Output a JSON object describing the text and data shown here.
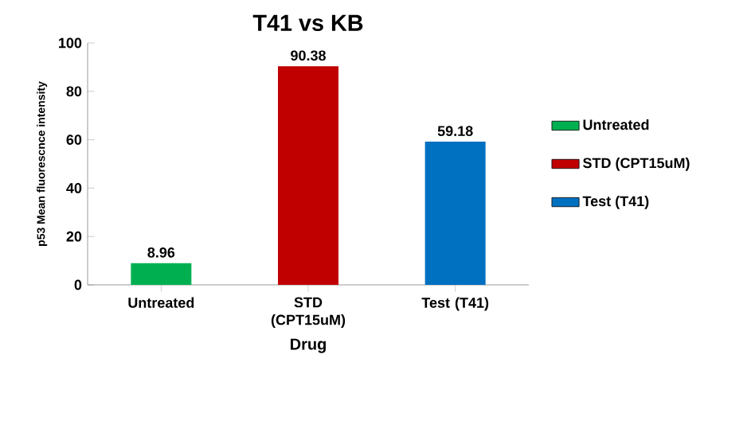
{
  "chart_data": {
    "type": "bar",
    "title": "T41 vs KB",
    "xlabel": "Drug",
    "ylabel": "p53 Mean fluorescnce intensity",
    "categories": [
      "Untreated",
      "STD (CPT15uM)",
      "Test (T41)"
    ],
    "series": [
      {
        "name": "Untreated",
        "color": "#00b050",
        "values": [
          8.96,
          null,
          null
        ]
      },
      {
        "name": "STD (CPT15uM)",
        "color": "#c00000",
        "values": [
          null,
          90.38,
          null
        ]
      },
      {
        "name": "Test (T41)",
        "color": "#0070c0",
        "values": [
          null,
          null,
          59.18
        ]
      }
    ],
    "ylim": [
      0,
      100
    ],
    "yticks": [
      0,
      20,
      40,
      60,
      80,
      100
    ],
    "data_labels": true,
    "legend": "right",
    "grid": false
  }
}
